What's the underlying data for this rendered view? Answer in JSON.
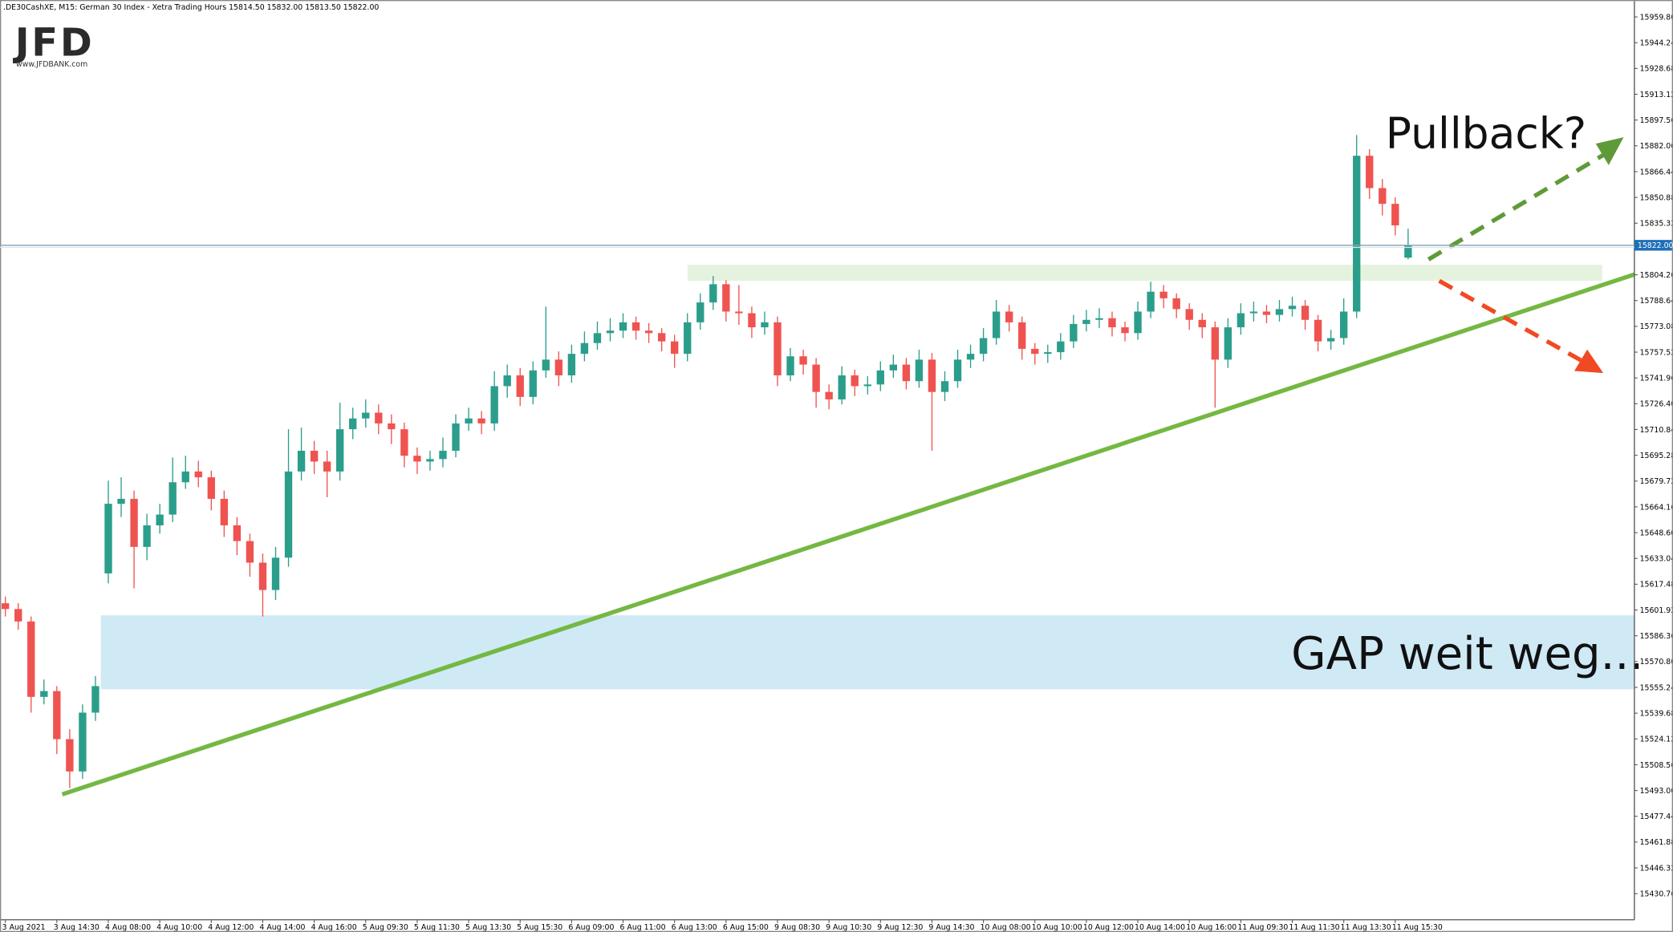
{
  "chart_data": {
    "type": "candlestick",
    "header": ".DE30CashXE, M15:  German 30 Index - Xetra Trading Hours  15814.50 15832.00 15813.50 15822.00",
    "logo": "JFD",
    "logo_url": "www.JFDBANK.com",
    "annotations": [
      "Pullback?",
      "GAP weit weg..."
    ],
    "up_color": "#2b9e8b",
    "down_color": "#ef5350",
    "ylim": [
      15415,
      15970
    ],
    "yticks": [
      {
        "value": 15959.8,
        "label": "15959.80"
      },
      {
        "value": 15944.24,
        "label": "15944.24"
      },
      {
        "value": 15928.68,
        "label": "15928.68"
      },
      {
        "value": 15913.12,
        "label": "15913.12"
      },
      {
        "value": 15897.56,
        "label": "15897.56"
      },
      {
        "value": 15882,
        "label": "15882.00"
      },
      {
        "value": 15866.44,
        "label": "15866.44"
      },
      {
        "value": 15850.88,
        "label": "15850.88"
      },
      {
        "value": 15835.32,
        "label": "15835.32"
      },
      {
        "value": 15804.2,
        "label": "15804.20"
      },
      {
        "value": 15788.64,
        "label": "15788.64"
      },
      {
        "value": 15773.08,
        "label": "15773.08"
      },
      {
        "value": 15757.52,
        "label": "15757.52"
      },
      {
        "value": 15741.96,
        "label": "15741.96"
      },
      {
        "value": 15726.4,
        "label": "15726.40"
      },
      {
        "value": 15710.84,
        "label": "15710.84"
      },
      {
        "value": 15695.28,
        "label": "15695.28"
      },
      {
        "value": 15679.72,
        "label": "15679.72"
      },
      {
        "value": 15664.16,
        "label": "15664.16"
      },
      {
        "value": 15648.6,
        "label": "15648.60"
      },
      {
        "value": 15633.04,
        "label": "15633.04"
      },
      {
        "value": 15617.48,
        "label": "15617.48"
      },
      {
        "value": 15601.92,
        "label": "15601.92"
      },
      {
        "value": 15586.36,
        "label": "15586.36"
      },
      {
        "value": 15570.8,
        "label": "15570.80"
      },
      {
        "value": 15555.24,
        "label": "15555.24"
      },
      {
        "value": 15539.68,
        "label": "15539.68"
      },
      {
        "value": 15524.12,
        "label": "15524.12"
      },
      {
        "value": 15508.56,
        "label": "15508.56"
      },
      {
        "value": 15493,
        "label": "15493.00"
      },
      {
        "value": 15477.44,
        "label": "15477.44"
      },
      {
        "value": 15461.88,
        "label": "15461.88"
      },
      {
        "value": 15446.32,
        "label": "15446.32"
      },
      {
        "value": 15430.76,
        "label": "15430.76"
      }
    ],
    "last_price": {
      "value": 15822,
      "label": "15822.00"
    },
    "categories": [
      "3 Aug 2021",
      null,
      null,
      null,
      "3 Aug 14:30",
      null,
      null,
      null,
      "4 Aug 08:00",
      null,
      null,
      null,
      "4 Aug 10:00",
      null,
      null,
      null,
      "4 Aug 12:00",
      null,
      null,
      null,
      "4 Aug 14:00",
      null,
      null,
      null,
      "4 Aug 16:00",
      null,
      null,
      null,
      "5 Aug 09:30",
      null,
      null,
      null,
      "5 Aug 11:30",
      null,
      null,
      null,
      "5 Aug 13:30",
      null,
      null,
      null,
      "5 Aug 15:30",
      null,
      null,
      null,
      "6 Aug 09:00",
      null,
      null,
      null,
      "6 Aug 11:00",
      null,
      null,
      null,
      "6 Aug 13:00",
      null,
      null,
      null,
      "6 Aug 15:00",
      null,
      null,
      null,
      "9 Aug 08:30",
      null,
      null,
      null,
      "9 Aug 10:30",
      null,
      null,
      null,
      "9 Aug 12:30",
      null,
      null,
      null,
      "9 Aug 14:30",
      null,
      null,
      null,
      "10 Aug 08:00",
      null,
      null,
      null,
      "10 Aug 10:00",
      null,
      null,
      null,
      "10 Aug 12:00",
      null,
      null,
      null,
      "10 Aug 14:00",
      null,
      null,
      null,
      "10 Aug 16:00",
      null,
      null,
      null,
      "11 Aug 09:30",
      null,
      null,
      null,
      "11 Aug 11:30",
      null,
      null,
      null,
      "11 Aug 13:30",
      null,
      null,
      null,
      "11 Aug 15:30",
      null
    ],
    "open": [
      15606,
      15602.5,
      15595,
      15549.5,
      15553,
      15524,
      15504.5,
      15540,
      15624,
      15666,
      15669,
      15640,
      15653,
      15659.5,
      15679,
      15685.5,
      15682,
      15669,
      15653,
      15643.5,
      15630.5,
      15614,
      15633.5,
      15685.5,
      15698,
      15691.5,
      15685.5,
      15711,
      15717.5,
      15721,
      15714.5,
      15711,
      15695,
      15691.5,
      15693,
      15698,
      15714.5,
      15717.5,
      15714.5,
      15737,
      15743.5,
      15730.5,
      15746.5,
      15753,
      15743.5,
      15756.5,
      15763,
      15769,
      15770.5,
      15775.5,
      15770.5,
      15769,
      15764,
      15756.5,
      15775.5,
      15787.5,
      15798.5,
      15782,
      15781,
      15772.5,
      15775.5,
      15743.5,
      15755,
      15750,
      15733.5,
      15729,
      15743.5,
      15737,
      15738,
      15746.5,
      15750,
      15740,
      15753,
      15733.5,
      15740,
      15753,
      15756.5,
      15766,
      15782,
      15775.5,
      15759.5,
      15756.5,
      15757.5,
      15764,
      15774.5,
      15777,
      15778,
      15772.5,
      15769,
      15782,
      15794,
      15790,
      15783.5,
      15777,
      15772.5,
      15753,
      15772.5,
      15781,
      15782,
      15780,
      15783.5,
      15785.5,
      15777,
      15764,
      15766,
      15782,
      15876,
      15856.5,
      15847,
      15814.5
    ],
    "high": [
      15610,
      15606,
      15598,
      15560,
      15556,
      15530,
      15545,
      15562,
      15680,
      15682,
      15674,
      15660,
      15666,
      15694,
      15695,
      15692,
      15686,
      15674,
      15658,
      15648,
      15636,
      15640,
      15711,
      15712,
      15704,
      15698,
      15727,
      15724,
      15729,
      15726,
      15720,
      15715,
      15700,
      15698,
      15706,
      15720,
      15724,
      15722,
      15746,
      15750,
      15748,
      15752,
      15785,
      15758,
      15762,
      15770,
      15776,
      15778,
      15781,
      15779,
      15775,
      15772,
      15768,
      15781,
      15793,
      15803.5,
      15801,
      15798,
      15785,
      15782,
      15779,
      15760,
      15759,
      15754,
      15738,
      15749,
      15747,
      15743,
      15752,
      15756,
      15754,
      15759,
      15757,
      15746,
      15759,
      15762,
      15772,
      15789,
      15786,
      15779,
      15763,
      15762,
      15769,
      15780,
      15783,
      15784,
      15782,
      15776,
      15788,
      15800,
      15798,
      15793,
      15787,
      15781,
      15776,
      15778,
      15787,
      15788,
      15786,
      15789,
      15791,
      15789,
      15780,
      15771,
      15790,
      15888.5,
      15880,
      15862,
      15851,
      15832
    ],
    "low": [
      15598,
      15590,
      15540,
      15545,
      15515,
      15494.5,
      15500,
      15535,
      15618,
      15658,
      15615,
      15632,
      15648,
      15655,
      15675,
      15676,
      15662,
      15646,
      15635,
      15622,
      15598,
      15608,
      15628,
      15680,
      15684,
      15670,
      15680,
      15705,
      15712,
      15708,
      15702,
      15688,
      15684,
      15686,
      15688,
      15694,
      15710,
      15708,
      15710,
      15730,
      15725,
      15726,
      15742,
      15737,
      15739,
      15752,
      15759,
      15764,
      15766,
      15765,
      15763,
      15758,
      15748,
      15752,
      15771,
      15783,
      15776,
      15774,
      15766,
      15768,
      15737,
      15740,
      15744,
      15724,
      15723,
      15726,
      15731,
      15732,
      15734,
      15742,
      15735,
      15736,
      15698,
      15728,
      15736,
      15748,
      15752,
      15762,
      15770,
      15753,
      15750,
      15751,
      15753,
      15760,
      15770,
      15772,
      15767,
      15764,
      15765,
      15778,
      15784,
      15778,
      15771,
      15766,
      15724,
      15748,
      15768,
      15776,
      15775,
      15776,
      15779,
      15771,
      15758,
      15759,
      15762,
      15778,
      15850,
      15840,
      15828,
      15813.5
    ],
    "close": [
      15602.5,
      15595,
      15549.5,
      15553,
      15524,
      15504.5,
      15540,
      15556,
      15666,
      15669,
      15640,
      15653,
      15659.5,
      15679,
      15685.5,
      15682,
      15669,
      15653,
      15643.5,
      15630.5,
      15614,
      15633.5,
      15685.5,
      15698,
      15691.5,
      15685.5,
      15711,
      15717.5,
      15721,
      15714.5,
      15711,
      15695,
      15691.5,
      15693,
      15698,
      15714.5,
      15717.5,
      15714.5,
      15737,
      15743.5,
      15730.5,
      15746.5,
      15753,
      15743.5,
      15756.5,
      15763,
      15769,
      15770.5,
      15775.5,
      15770.5,
      15769,
      15764,
      15756.5,
      15775.5,
      15787.5,
      15798.5,
      15782,
      15781,
      15772.5,
      15775.5,
      15743.5,
      15755,
      15750,
      15733.5,
      15729,
      15743.5,
      15737,
      15738,
      15746.5,
      15750,
      15740,
      15753,
      15733.5,
      15740,
      15753,
      15756.5,
      15766,
      15782,
      15775.5,
      15759.5,
      15756.5,
      15757.5,
      15764,
      15774.5,
      15777,
      15778,
      15772.5,
      15769,
      15782,
      15794,
      15790,
      15783.5,
      15777,
      15772.5,
      15753,
      15772.5,
      15781,
      15782,
      15780,
      15783.5,
      15785.5,
      15777,
      15764,
      15766,
      15782,
      15876,
      15856.5,
      15847,
      15834,
      15822
    ]
  }
}
